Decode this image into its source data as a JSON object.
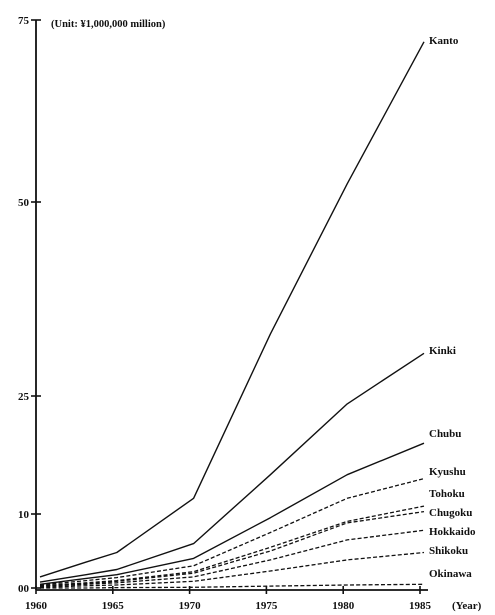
{
  "chart_data": {
    "type": "line",
    "unit_note": "(Unit: ¥1,000,000 million)",
    "x_axis_label": "(Year)",
    "x": [
      1960,
      1963,
      1965,
      1970,
      1975,
      1980,
      1985
    ],
    "x_ticks": [
      "1960",
      "1965",
      "1970",
      "1975",
      "1980",
      "1985"
    ],
    "y_ticks": [
      "00",
      "10",
      "25",
      "50",
      "75"
    ],
    "series": [
      {
        "name": "Kanto",
        "style": "solid",
        "values": [
          1.5,
          3.5,
          4.8,
          12.0,
          33.0,
          52.5,
          72.0
        ]
      },
      {
        "name": "Kinki",
        "style": "solid",
        "values": [
          0.8,
          1.8,
          2.5,
          6.0,
          15.0,
          24.0,
          30.5
        ]
      },
      {
        "name": "Chubu",
        "style": "solid",
        "values": [
          0.5,
          1.3,
          1.8,
          4.0,
          9.5,
          15.0,
          19.0
        ]
      },
      {
        "name": "Kyushu",
        "style": "dashed",
        "values": [
          0.4,
          1.0,
          1.4,
          3.0,
          7.5,
          12.0,
          14.5
        ]
      },
      {
        "name": "Tohoku",
        "style": "dashed",
        "values": [
          0.3,
          0.7,
          1.0,
          2.2,
          5.5,
          9.0,
          11.0
        ]
      },
      {
        "name": "Chugoku",
        "style": "dashed",
        "values": [
          0.3,
          0.6,
          0.9,
          2.0,
          5.0,
          8.8,
          10.3
        ]
      },
      {
        "name": "Hokkaido",
        "style": "dashed",
        "values": [
          0.2,
          0.5,
          0.7,
          1.5,
          3.8,
          6.5,
          7.8
        ]
      },
      {
        "name": "Shikoku",
        "style": "dashed",
        "values": [
          0.1,
          0.3,
          0.4,
          0.9,
          2.3,
          3.8,
          4.8
        ]
      },
      {
        "name": "Okinawa",
        "style": "dashed",
        "values": [
          0.0,
          0.0,
          0.05,
          0.1,
          0.25,
          0.4,
          0.5
        ]
      }
    ],
    "ylim": [
      0,
      75
    ],
    "xlim": [
      1960,
      1985
    ],
    "grid": false,
    "legend": "labels at line ends (right)"
  }
}
